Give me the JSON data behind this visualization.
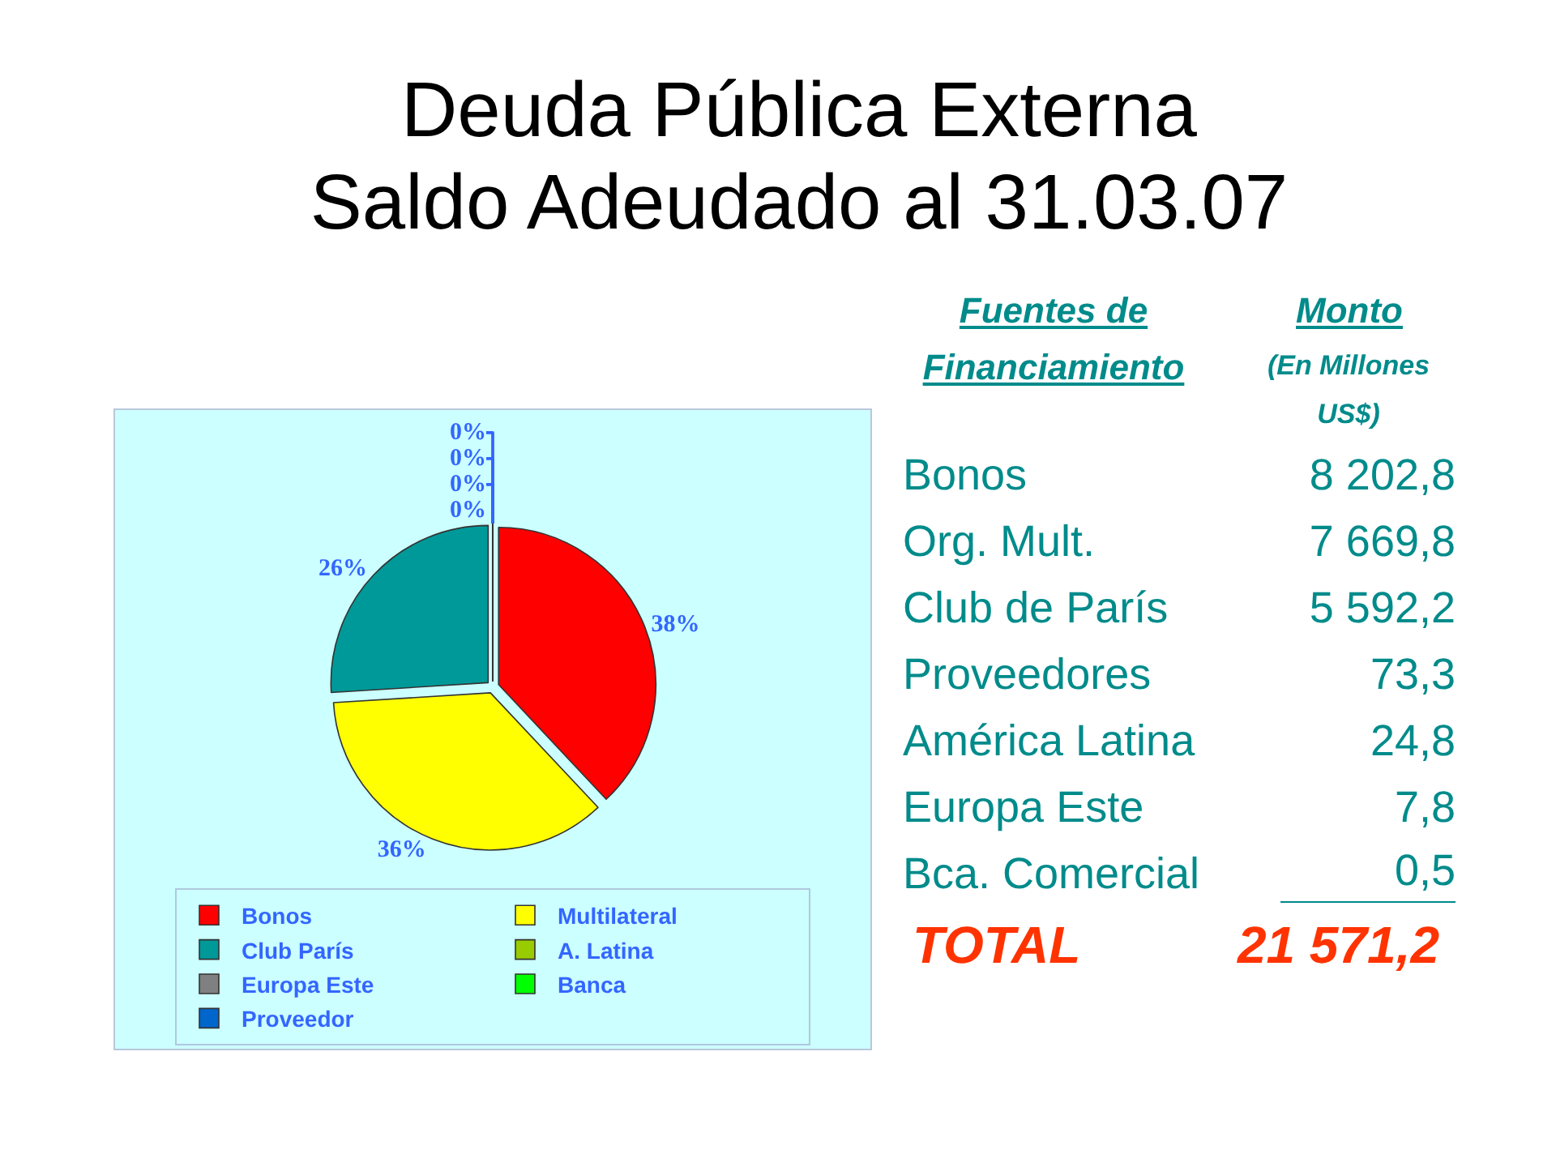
{
  "chart_data": [
    {
      "type": "pie",
      "title": "Deuda Pública Externa",
      "subtitle": "Saldo Adeudado al 31.03.07",
      "categories": [
        "Bonos",
        "Multilateral",
        "Club París",
        "A. Latina",
        "Europa Este",
        "Banca",
        "Proveedor"
      ],
      "values": [
        38,
        36,
        26,
        0,
        0,
        0,
        0
      ],
      "colors": [
        "#ff0000",
        "#ffff00",
        "#009999",
        "#99cc00",
        "#808080",
        "#00ff00",
        "#0066cc"
      ],
      "value_labels": [
        "38%",
        "36%",
        "26%",
        "0%",
        "0%",
        "0%",
        "0%"
      ],
      "legend": "bottom"
    },
    {
      "type": "other",
      "categories": [
        "Bonos",
        "Org. Mult.",
        "Club de París",
        "Proveedores",
        "América Latina",
        "Europa Este",
        "Bca. Comercial"
      ],
      "value_labels": [
        "8 202,8",
        "7 669,8",
        "5 592,2",
        "73,3",
        "24,8",
        "7,8",
        "0,5"
      ],
      "annotations": [
        "Fuentes de Financiamiento",
        "Monto",
        "(En Millones US$)",
        "TOTAL"
      ],
      "totals": [
        "21 571,2"
      ]
    }
  ]
}
